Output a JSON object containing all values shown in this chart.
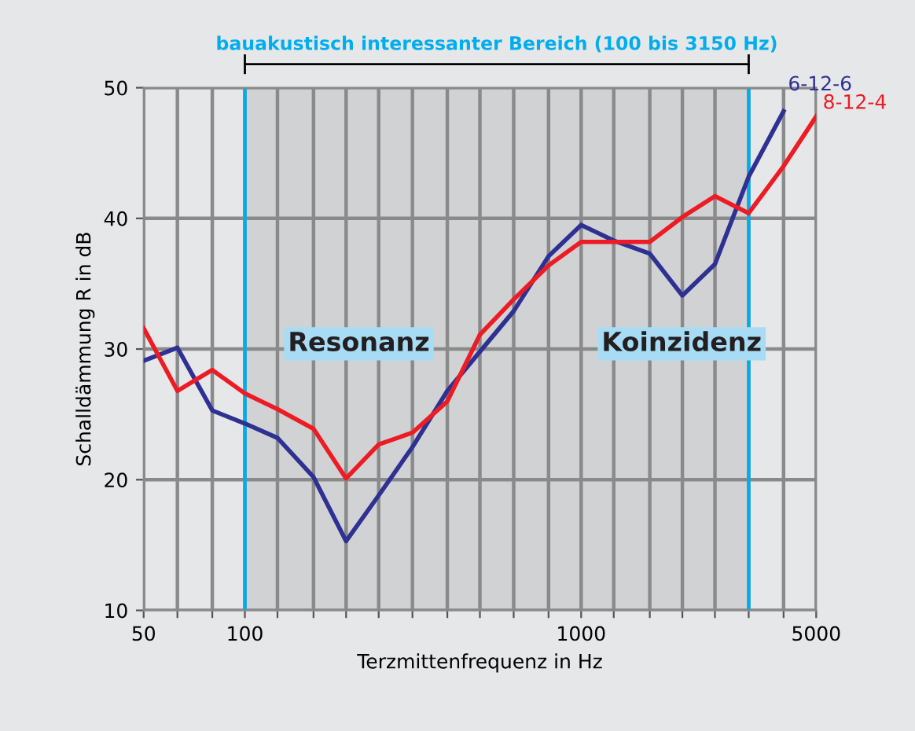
{
  "chart_data": {
    "type": "line",
    "xlabel": "Terzmittenfrequenz in Hz",
    "ylabel": "Schalldämmung R in dB",
    "x": [
      50,
      63,
      80,
      100,
      125,
      160,
      200,
      250,
      315,
      400,
      500,
      630,
      800,
      1000,
      1250,
      1600,
      2000,
      2500,
      3150,
      4000,
      5000
    ],
    "series": [
      {
        "name": "6-12-6",
        "color": "#2e3192",
        "values": [
          29.1,
          30.1,
          25.3,
          24.3,
          23.2,
          20.2,
          15.3,
          18.8,
          22.5,
          26.8,
          29.8,
          32.9,
          37.1,
          39.5,
          38.3,
          37.3,
          34.1,
          36.5,
          43.2,
          48.2,
          null
        ]
      },
      {
        "name": "8-12-4",
        "color": "#ed1c24",
        "values": [
          31.6,
          26.8,
          28.4,
          26.6,
          25.4,
          23.9,
          20.1,
          22.7,
          23.6,
          26.0,
          31.1,
          33.8,
          36.4,
          38.2,
          38.2,
          38.2,
          40.1,
          41.7,
          40.4,
          44.0,
          47.8
        ]
      }
    ],
    "log": "x",
    "xlim": [
      50,
      5000
    ],
    "ylim": [
      10,
      50
    ],
    "xticks": [
      50,
      {
        "value": 63,
        "label": null
      },
      {
        "value": 80,
        "label": null
      },
      100,
      {
        "value": 125,
        "label": null
      },
      {
        "value": 160,
        "label": null
      },
      {
        "value": 200,
        "label": null
      },
      {
        "value": 250,
        "label": null
      },
      {
        "value": 315,
        "label": null
      },
      {
        "value": 400,
        "label": null
      },
      {
        "value": 500,
        "label": null
      },
      {
        "value": 630,
        "label": null
      },
      {
        "value": 800,
        "label": null
      },
      1000,
      {
        "value": 1250,
        "label": null
      },
      {
        "value": 1600,
        "label": null
      },
      {
        "value": 2000,
        "label": null
      },
      {
        "value": 2500,
        "label": null
      },
      {
        "value": 3150,
        "label": null
      },
      {
        "value": 4000,
        "label": null
      },
      5000
    ],
    "yticks": [
      10,
      20,
      30,
      40,
      50
    ],
    "grid": true,
    "bands": [
      {
        "axis": "x",
        "from": 100,
        "to": 3150,
        "label": "bauakustisch interessanter Bereich (100 bis 3150 Hz)",
        "color": "#d1d2d4"
      }
    ],
    "annotations": [
      "Resonanz",
      "Koinzidenz"
    ]
  }
}
